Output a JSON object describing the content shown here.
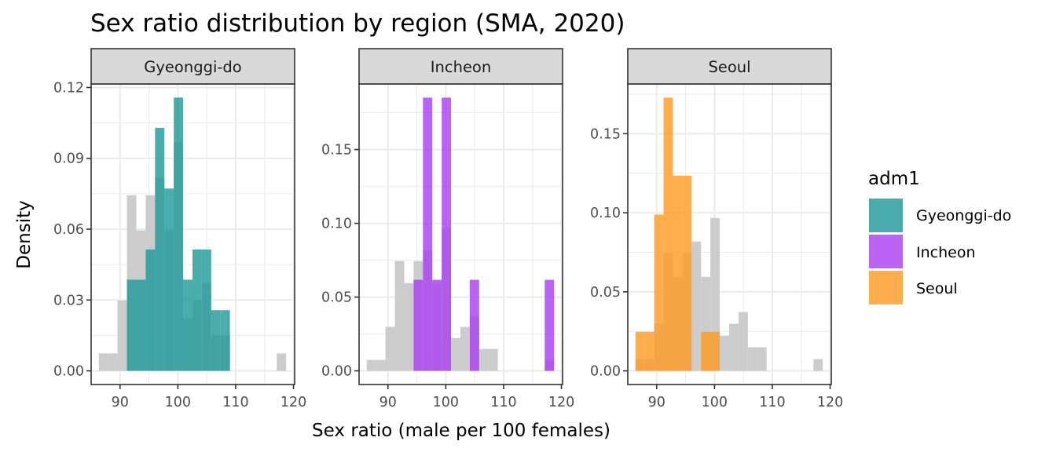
{
  "chart_data": {
    "type": "bar",
    "subtype": "faceted-histogram",
    "title": "Sex ratio distribution by region (SMA, 2020)",
    "xlabel": "Sex ratio (male per 100 females)",
    "ylabel": "Density",
    "xlim": [
      85.0,
      120.2
    ],
    "x_ticks": [
      90,
      100,
      110,
      120
    ],
    "x_tick_labels": [
      "90",
      "100",
      "110",
      "120"
    ],
    "bin_start": 86.33,
    "bin_width": 1.62,
    "grid": true,
    "background_series": {
      "name": "all regions",
      "color": "#cccccc",
      "density": [
        0.0074,
        0.0074,
        0.0298,
        0.0744,
        0.0595,
        0.0744,
        0.0818,
        0.0595,
        0.0967,
        0.0223,
        0.0298,
        0.0372,
        0.0149,
        0.0149,
        0,
        0,
        0,
        0,
        0,
        0.0074
      ]
    },
    "fill_alpha": 0.8,
    "panels": [
      {
        "strip": "Gyeonggi-do",
        "color": "#1d9797",
        "y_ticks": [
          0.0,
          0.03,
          0.06,
          0.09,
          0.12
        ],
        "y_tick_labels": [
          "0.00",
          "0.03",
          "0.06",
          "0.09",
          "0.12"
        ],
        "density": [
          0,
          0,
          0,
          0.0386,
          0.0386,
          0.0514,
          0.1029,
          0.0772,
          0.1157,
          0.0386,
          0.0514,
          0.0514,
          0.0257,
          0.0257,
          0,
          0,
          0,
          0,
          0,
          0
        ]
      },
      {
        "strip": "Incheon",
        "color": "#a93cf1",
        "y_ticks": [
          0.0,
          0.05,
          0.1,
          0.15
        ],
        "y_tick_labels": [
          "0.00",
          "0.05",
          "0.10",
          "0.15"
        ],
        "density": [
          0,
          0,
          0,
          0,
          0,
          0.0617,
          0.1852,
          0.0617,
          0.1852,
          0,
          0,
          0.0617,
          0,
          0,
          0,
          0,
          0,
          0,
          0,
          0.0617
        ]
      },
      {
        "strip": "Seoul",
        "color": "#ff9820",
        "y_ticks": [
          0.0,
          0.05,
          0.1,
          0.15
        ],
        "y_tick_labels": [
          "0.00",
          "0.05",
          "0.10",
          "0.15"
        ],
        "density": [
          0.0247,
          0.0247,
          0.0988,
          0.1728,
          0.1235,
          0.1235,
          0,
          0.0247,
          0.0247,
          0,
          0,
          0,
          0,
          0,
          0,
          0,
          0,
          0,
          0,
          0
        ]
      }
    ],
    "legend": {
      "title": "adm1",
      "position": "right",
      "entries": [
        {
          "label": "Gyeonggi-do",
          "color": "#1d9797"
        },
        {
          "label": "Incheon",
          "color": "#a93cf1"
        },
        {
          "label": "Seoul",
          "color": "#ff9820"
        }
      ]
    }
  }
}
